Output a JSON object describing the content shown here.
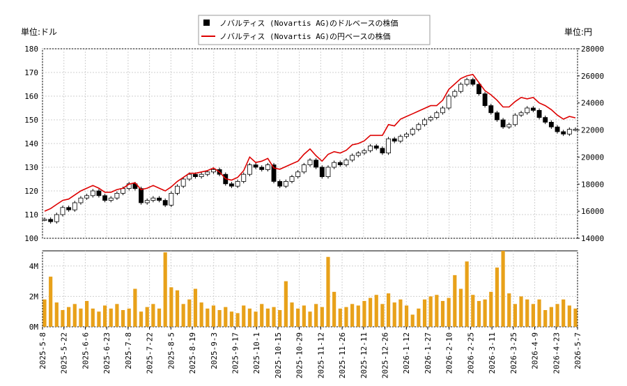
{
  "chart_data": [
    {
      "type": "candlestick-line",
      "legend": {
        "placement": "top-center",
        "entries": [
          {
            "label": "ノバルティス (Novartis AG)のドルベースの株価",
            "marker": "black-square"
          },
          {
            "label": "ノバルティス (Novartis AG)の円ベースの株価",
            "marker": "red-line"
          }
        ]
      },
      "left_axis": {
        "unit_label": "単位:ドル",
        "ylim": [
          100,
          180
        ],
        "ticks": [
          "100",
          "110",
          "120",
          "130",
          "140",
          "150",
          "160",
          "170",
          "180"
        ]
      },
      "right_axis": {
        "unit_label": "単位:円",
        "ylim": [
          14000,
          28000
        ],
        "ticks": [
          "14000",
          "16000",
          "18000",
          "20000",
          "22000",
          "24000",
          "26000",
          "28000"
        ]
      },
      "grid": true,
      "x_ticks": [
        "2025-5-8",
        "2025-5-22",
        "2025-6-6",
        "2025-6-23",
        "2025-7-8",
        "2025-7-22",
        "2025-8-5",
        "2025-8-19",
        "2025-9-3",
        "2025-9-17",
        "2025-10-1",
        "2025-10-15",
        "2025-10-29",
        "2025-11-12",
        "2025-11-26",
        "2025-12-11",
        "2025-12-26",
        "2026-1-12",
        "2026-1-27",
        "2026-2-10",
        "2026-2-25",
        "2026-3-11",
        "2026-3-25",
        "2026-4-9",
        "2026-4-23",
        "2026-5-7"
      ],
      "series": [
        {
          "name": "ノバルティス (Novartis AG)のドルベースの株価",
          "axis": "left",
          "color": "#000000",
          "close": [
            108,
            107,
            110,
            113,
            112,
            115,
            117,
            118,
            120,
            118,
            116,
            117,
            119,
            121,
            123,
            121,
            115,
            116,
            117,
            116,
            114,
            119,
            122,
            125,
            127,
            126,
            127,
            128,
            129,
            127,
            123,
            122,
            124,
            127,
            131,
            130,
            129,
            131,
            124,
            122,
            124,
            126,
            128,
            131,
            133,
            130,
            126,
            130,
            132,
            131,
            133,
            135,
            136,
            137,
            139,
            138,
            136,
            142,
            141,
            143,
            144,
            146,
            148,
            150,
            151,
            153,
            155,
            160,
            162,
            165,
            167,
            165,
            161,
            156,
            153,
            150,
            147,
            148,
            152,
            153,
            155,
            154,
            151,
            149,
            147,
            145,
            144,
            146,
            146
          ]
        },
        {
          "name": "ノバルティス (Novartis AG)の円ベースの株価",
          "axis": "right",
          "color": "#dd0000",
          "values": [
            16000,
            16200,
            16500,
            16800,
            16900,
            17200,
            17500,
            17700,
            17900,
            17700,
            17400,
            17400,
            17600,
            17700,
            18000,
            18100,
            17600,
            17700,
            17900,
            17700,
            17500,
            17800,
            18200,
            18500,
            18800,
            18800,
            18900,
            19000,
            19200,
            18900,
            18400,
            18300,
            18500,
            19000,
            20000,
            19600,
            19700,
            19900,
            19200,
            19100,
            19300,
            19500,
            19700,
            20200,
            20600,
            20100,
            19700,
            20200,
            20400,
            20300,
            20500,
            20900,
            21000,
            21200,
            21600,
            21600,
            21600,
            22400,
            22300,
            22800,
            23000,
            23200,
            23400,
            23600,
            23800,
            23800,
            24200,
            25000,
            25400,
            25800,
            26000,
            26100,
            25500,
            24900,
            24600,
            24200,
            23700,
            23700,
            24100,
            24400,
            24300,
            24400,
            24000,
            23800,
            23500,
            23100,
            22800,
            23000,
            22900
          ]
        },
        {
          "name": "出来高",
          "axis": "volume",
          "color": "#e8a11a",
          "values": [
            1.8,
            3.3,
            1.6,
            1.1,
            1.3,
            1.5,
            1.2,
            1.7,
            1.2,
            1.0,
            1.4,
            1.2,
            1.5,
            1.1,
            1.2,
            2.5,
            1.0,
            1.3,
            1.5,
            1.2,
            4.9,
            2.6,
            2.4,
            1.5,
            1.8,
            2.5,
            1.6,
            1.2,
            1.4,
            1.1,
            1.3,
            1.0,
            0.9,
            1.4,
            1.2,
            1.0,
            1.5,
            1.2,
            1.3,
            1.1,
            3.0,
            1.6,
            1.2,
            1.4,
            1.0,
            1.5,
            1.3,
            4.6,
            2.3,
            1.2,
            1.3,
            1.5,
            1.4,
            1.7,
            1.9,
            2.1,
            1.5,
            2.2,
            1.6,
            1.8,
            1.4,
            0.8,
            1.2,
            1.8,
            2.0,
            2.1,
            1.7,
            1.9,
            3.4,
            2.5,
            4.3,
            2.1,
            1.7,
            1.8,
            2.3,
            3.9,
            5.0,
            2.2,
            1.5,
            2.0,
            1.8,
            1.5,
            1.8,
            1.1,
            1.3,
            1.5,
            1.8,
            1.4,
            1.2
          ]
        }
      ],
      "volume_axis": {
        "ylim": [
          0,
          5
        ],
        "ticks": [
          "0M",
          "2M",
          "4M"
        ]
      }
    }
  ]
}
